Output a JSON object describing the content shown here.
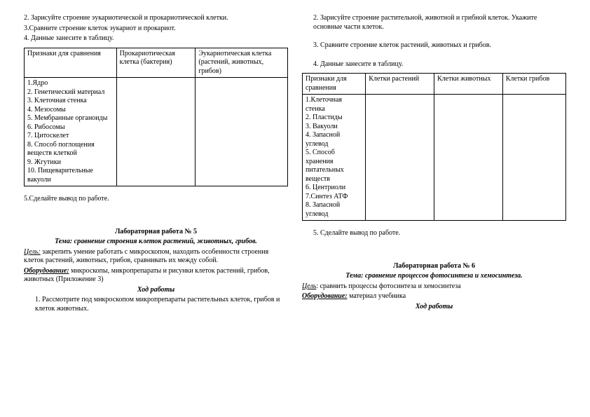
{
  "left": {
    "line2": "2. Зарисуйте строение эукариотической и прокариотической клетки.",
    "line3": "3.Сравните строение клеток эукариот и прокариот.",
    "line4": "4. Данные занесите в таблицу.",
    "table1": {
      "h1": "Признаки для сравнения",
      "h2": "Прокариотическая клетка (бактерия)",
      "h3": "Эукариотическая клетка (растений, животных, грибов)",
      "features": "1.Ядро\n2. Генетический материал\n3. Клеточная стенка\n4. Мезосомы\n5. Мембранные органоиды\n6. Рибосомы\n7. Цитоскелет\n8. Способ поглощения веществ клеткой\n9. Жгутики\n10. Пищеварительные вакуоли"
    },
    "conclusion": "5.Сделайте вывод по работе.",
    "lab5_title": "Лабораторная работа № 5",
    "lab5_theme": "Тема: сравнение строения клеток растений, животных, грибов.",
    "lab5_goal_label": "Цель:",
    "lab5_goal_body": " закрепить умение работать с микроскопом, находить особенности строения клеток растений, животных, грибов, сравнивать их между собой.",
    "lab5_equip_label": "Оборудование:",
    "lab5_equip_body": " микроскопы, микропрепараты и рисунки клеток растений, грибов, животных (Приложение 3)",
    "lab5_hod": "Ход работы",
    "lab5_step1": "1.  Рассмотрите под микроскопом микропрепараты растительных клеток, грибов и клеток животных."
  },
  "right": {
    "step2": "2.  Зарисуйте строение растительной, животной и грибной клеток. Укажите основные части клеток.",
    "step3": "3.  Сравните строение клеток растений, животных и грибов.",
    "step4": "4.  Данные занесите в таблицу.",
    "table2": {
      "h1": "Признаки для сравнения",
      "h2": "Клетки растений",
      "h3": "Клетки животных",
      "h4": "Клетки грибов",
      "features": "1.Клеточная стенка\n2. Пластиды\n3. Вакуоли\n4. Запасной углевод\n5. Способ хранения питательных веществ\n6. Центриоли\n7.Синтез АТФ\n8. Запасной углевод"
    },
    "step5": "5.  Сделайте вывод по работе.",
    "lab6_title": "Лабораторная работа № 6",
    "lab6_theme": "Тема: сравнение процессов фотосинтеза и хемосинтеза.",
    "lab6_goal_label": "Цель",
    "lab6_goal_body": ": сравнить процессы фотосинтеза и хемосинтеза",
    "lab6_equip_label": "Оборудование:",
    "lab6_equip_body": " материал учебника",
    "lab6_hod": "Ход работы"
  }
}
